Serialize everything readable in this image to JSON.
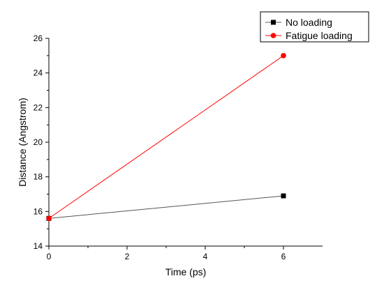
{
  "chart_data": {
    "type": "line",
    "xlabel": "Time (ps)",
    "ylabel": "Distance (Angstrom)",
    "xlim": [
      0,
      7
    ],
    "ylim": [
      14,
      26
    ],
    "xticks": [
      0,
      2,
      4,
      6
    ],
    "yticks": [
      14,
      16,
      18,
      20,
      22,
      24,
      26
    ],
    "legend_position": "top-right",
    "grid": false,
    "series": [
      {
        "name": "No loading",
        "x": [
          0,
          6
        ],
        "y": [
          15.6,
          16.9
        ],
        "color": "#000000",
        "line_color": "#555555",
        "marker": "square"
      },
      {
        "name": "Fatigue loading",
        "x": [
          0,
          6
        ],
        "y": [
          15.6,
          25.0
        ],
        "color": "#ff0000",
        "line_color": "#ff0000",
        "marker": "circle"
      }
    ]
  }
}
